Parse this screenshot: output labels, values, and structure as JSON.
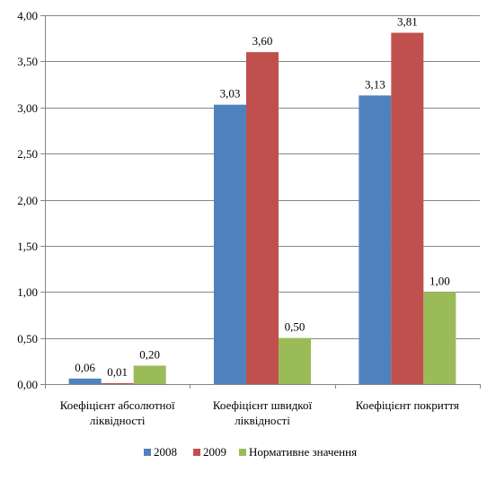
{
  "chart_data": {
    "type": "bar",
    "title": "",
    "xlabel": "",
    "ylabel": "",
    "ylim": [
      0,
      4
    ],
    "yticks": [
      "0,00",
      "0,50",
      "1,00",
      "1,50",
      "2,00",
      "2,50",
      "3,00",
      "3,50",
      "4,00"
    ],
    "grid": true,
    "legend_position": "bottom",
    "categories": [
      [
        "Коефіцієнт абсолютної",
        "ліквідності"
      ],
      [
        "Коефіцієнт швидкої",
        "ліквідності"
      ],
      [
        "Коефіцієнт покриття"
      ]
    ],
    "series": [
      {
        "name": "2008",
        "color": "#4F81BD",
        "values": [
          0.06,
          3.03,
          3.13
        ],
        "labels": [
          "0,06",
          "3,03",
          "3,13"
        ]
      },
      {
        "name": "2009",
        "color": "#C0504D",
        "values": [
          0.01,
          3.6,
          3.81
        ],
        "labels": [
          "0,01",
          "3,60",
          "3,81"
        ]
      },
      {
        "name": "Нормативне значення",
        "color": "#9BBB59",
        "values": [
          0.2,
          0.5,
          1.0
        ],
        "labels": [
          "0,20",
          "0,50",
          "1,00"
        ]
      }
    ]
  }
}
